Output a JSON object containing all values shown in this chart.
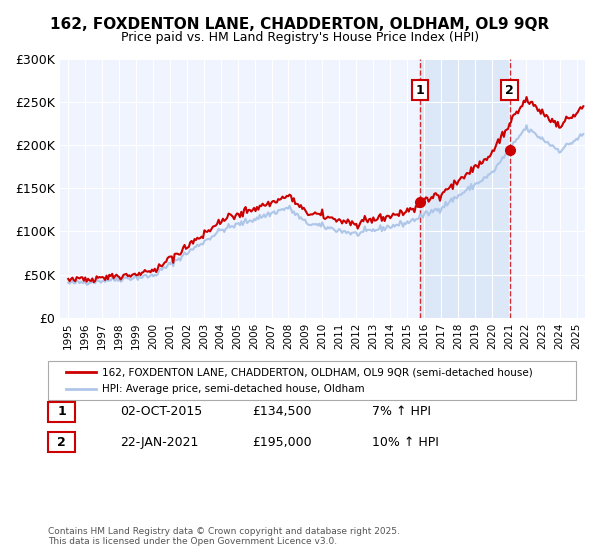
{
  "title1": "162, FOXDENTON LANE, CHADDERTON, OLDHAM, OL9 9QR",
  "title2": "Price paid vs. HM Land Registry's House Price Index (HPI)",
  "legend_line1": "162, FOXDENTON LANE, CHADDERTON, OLDHAM, OL9 9QR (semi-detached house)",
  "legend_line2": "HPI: Average price, semi-detached house, Oldham",
  "sale1_label": "1",
  "sale1_date": "02-OCT-2015",
  "sale1_price": "£134,500",
  "sale1_hpi": "7% ↑ HPI",
  "sale1_year": 2015.75,
  "sale1_value": 134500,
  "sale2_label": "2",
  "sale2_date": "22-JAN-2021",
  "sale2_price": "£195,000",
  "sale2_hpi": "10% ↑ HPI",
  "sale2_year": 2021.05,
  "sale2_value": 195000,
  "ylim": [
    0,
    300000
  ],
  "xlim_start": 1995,
  "xlim_end": 2025.5,
  "background_color": "#f0f4ff",
  "plot_bg_color": "#f0f4ff",
  "red_color": "#cc0000",
  "blue_color": "#aec6e8",
  "footer": "Contains HM Land Registry data © Crown copyright and database right 2025.\nThis data is licensed under the Open Government Licence v3.0.",
  "shade_color": "#dce8f8"
}
